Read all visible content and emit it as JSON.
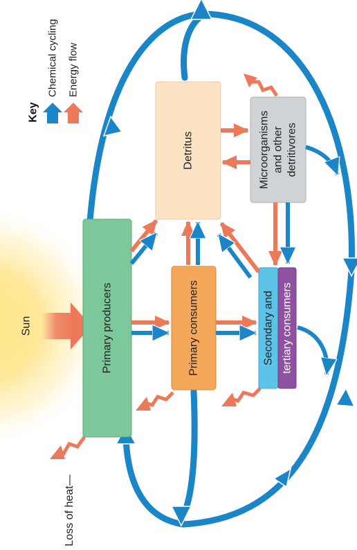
{
  "labels": {
    "sun": "Sun",
    "primary_producers": "Primary producers",
    "primary_consumers": "Primary consumers",
    "detritus": "Detritus",
    "microorganisms": [
      "Microorganisms",
      "and other",
      "detritivores"
    ],
    "secondary_tertiary": [
      "Secondary and",
      "tertiary consumers"
    ],
    "loss_of_heat": "Loss of heat"
  },
  "key": {
    "title": "Key",
    "chemical_cycling": "Chemical cycling",
    "energy_flow": "Energy flow"
  },
  "colors": {
    "chemical": "#1a86c7",
    "energy": "#ec7a5a",
    "producers": "#7dc89a",
    "primary_consumers": "#f5a85a",
    "detritus": "#fce3c4",
    "microorganisms": "#cfd3d6",
    "secondary": "#5bc4e8",
    "tertiary": "#8f52a0"
  }
}
